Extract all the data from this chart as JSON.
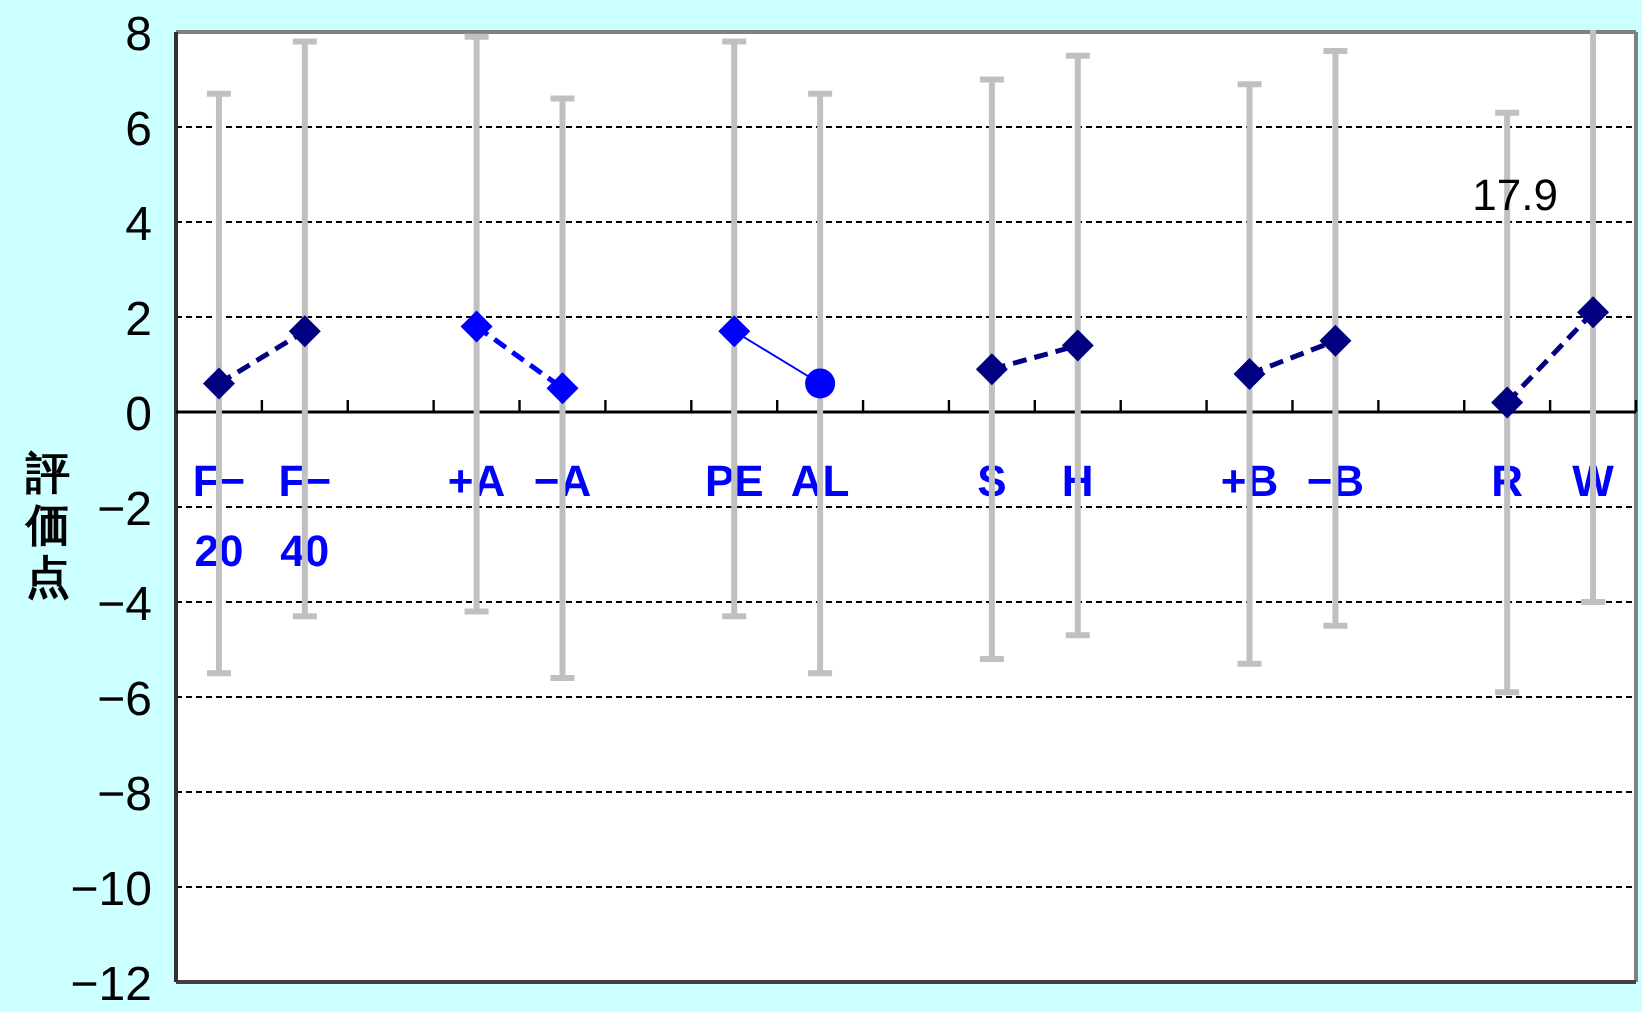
{
  "chart_data": {
    "type": "line",
    "ylabel": "評価点",
    "categories": [
      "F−\n20",
      "F−\n40",
      null,
      "+A",
      "−A",
      null,
      "PE",
      "AL",
      null,
      "S",
      "H",
      null,
      "+B",
      "−B",
      null,
      "R",
      "W"
    ],
    "ylim": [
      -12,
      8
    ],
    "yticks": [
      -12,
      -10,
      -8,
      -6,
      -4,
      -2,
      0,
      2,
      4,
      6,
      8
    ],
    "grid": "y",
    "annotations": [
      "17.9"
    ],
    "series": [
      {
        "color": "#000080",
        "line_style": "dashed",
        "marker": "diamond",
        "values": [
          0.6,
          1.7,
          null,
          null,
          null,
          null,
          null,
          null,
          null,
          0.9,
          1.4,
          null,
          0.8,
          1.5,
          null,
          0.2,
          2.1
        ],
        "errors": [
          [
            -5.5,
            6.7
          ],
          [
            -4.3,
            7.8
          ],
          null,
          null,
          null,
          null,
          null,
          null,
          null,
          [
            -5.2,
            7.0
          ],
          [
            -4.7,
            7.5
          ],
          null,
          [
            -5.3,
            6.9
          ],
          [
            -4.5,
            7.6
          ],
          null,
          [
            -5.9,
            6.3
          ],
          [
            -4.0,
            17.9
          ]
        ]
      },
      {
        "color": "#0000ff",
        "line_style": "dashed",
        "marker": "diamond",
        "values": [
          null,
          null,
          null,
          1.8,
          0.5,
          null,
          null,
          null,
          null,
          null,
          null,
          null,
          null,
          null,
          null,
          null,
          null
        ],
        "errors": [
          null,
          null,
          null,
          [
            -4.2,
            7.9
          ],
          [
            -5.6,
            6.6
          ],
          null,
          null,
          null,
          null,
          null,
          null,
          null,
          null,
          null,
          null,
          null,
          null
        ]
      },
      {
        "color": "#0000ff",
        "line_style": "solid",
        "marker": "none",
        "values": [
          null,
          null,
          null,
          null,
          null,
          null,
          1.7,
          0.6,
          null,
          null,
          null,
          null,
          null,
          null,
          null,
          null,
          null
        ],
        "errors": [
          null,
          null,
          null,
          null,
          null,
          null,
          [
            -4.3,
            7.8
          ],
          [
            -5.5,
            6.7
          ],
          null,
          null,
          null,
          null,
          null,
          null,
          null,
          null,
          null
        ]
      },
      {
        "type": "scatter",
        "color": "#0000ff",
        "marker": "diamond",
        "values": [
          null,
          null,
          null,
          null,
          null,
          null,
          1.7,
          null,
          null,
          null,
          null,
          null,
          null,
          null,
          null,
          null,
          null
        ]
      },
      {
        "type": "scatter",
        "color": "#0000ff",
        "marker": "circle",
        "values": [
          null,
          null,
          null,
          null,
          null,
          null,
          null,
          0.6,
          null,
          null,
          null,
          null,
          null,
          null,
          null,
          null,
          null
        ]
      }
    ]
  }
}
